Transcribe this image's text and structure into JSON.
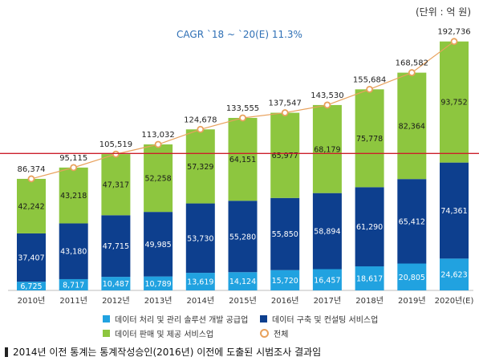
{
  "unit_label": "(단위 : 억 원)",
  "cagr_label": "CAGR `18 ~ `20(E) 11.3%",
  "footnote": "2014년 이전 통계는 통계작성승인(2016년) 이전에 도출된 시범조사 결과임",
  "colors": {
    "processing": "#21a2e0",
    "consulting": "#0d3f8e",
    "sales": "#8dc63f",
    "total": "#e8a15c",
    "reference_line": "#cc1f2b"
  },
  "chart_data": {
    "type": "bar",
    "stacked": true,
    "categories": [
      "2010년",
      "2011년",
      "2012년",
      "2013년",
      "2014년",
      "2015년",
      "2016년",
      "2017년",
      "2018년",
      "2019년",
      "2020년(E)"
    ],
    "series": [
      {
        "name": "데이터 처리 및 관리 솔루션 개발 공급업",
        "labels": [
          "6,725",
          "8,717",
          "10,487",
          "10,789",
          "13,619",
          "14,124",
          "15,720",
          "16,457",
          "18,617",
          "20,805",
          "24,623"
        ],
        "values": [
          6725,
          8717,
          10487,
          10789,
          13619,
          14124,
          15720,
          16457,
          18617,
          20805,
          24623
        ]
      },
      {
        "name": "데이터 구축 및 컨설팅 서비스업",
        "labels": [
          "37,407",
          "43,180",
          "47,715",
          "49,985",
          "53,730",
          "55,280",
          "55,850",
          "58,894",
          "61,290",
          "65,412",
          "74,361"
        ],
        "values": [
          37407,
          43180,
          47715,
          49985,
          53730,
          55280,
          55850,
          58894,
          61290,
          65412,
          74361
        ]
      },
      {
        "name": "데이터 판매 및 제공 서비스업",
        "labels": [
          "42,242",
          "43,218",
          "47,317",
          "52,258",
          "57,329",
          "64,151",
          "65,977",
          "68,179",
          "75,778",
          "82,364",
          "93,752"
        ],
        "values": [
          42242,
          43218,
          47317,
          52258,
          57329,
          64151,
          65977,
          68179,
          75778,
          82364,
          93752
        ]
      }
    ],
    "total": {
      "name": "전체",
      "labels": [
        "86,374",
        "95,115",
        "105,519",
        "113,032",
        "124,678",
        "133,555",
        "137,547",
        "143,530",
        "155,684",
        "168,582",
        "192,736"
      ],
      "values": [
        86374,
        95115,
        105519,
        113032,
        124678,
        133555,
        137547,
        143530,
        155684,
        168582,
        192736
      ]
    },
    "ylim": [
      0,
      200000
    ],
    "reference_line_value": 106000,
    "grid": false,
    "legend_position": "bottom"
  }
}
